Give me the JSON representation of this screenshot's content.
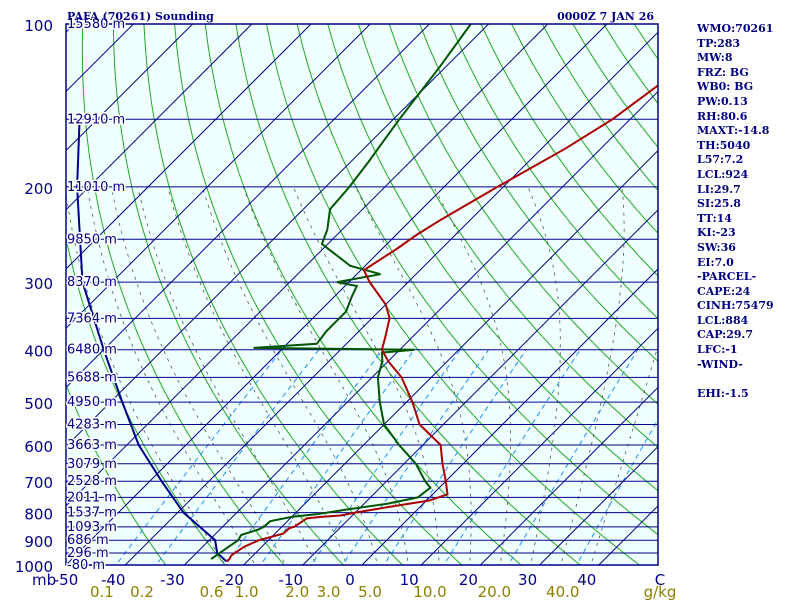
{
  "header": {
    "title": "PAFA (70261) Sounding",
    "valid_time": "0000Z  7 JAN 26"
  },
  "stats": [
    "WMO:70261",
    "TP:283",
    "MW:8",
    "FRZ: BG",
    "WB0: BG",
    "PW:0.13",
    "RH:80.6",
    "MAXT:-14.8",
    "TH:5040",
    "L57:7.2",
    "LCL:924",
    "LI:29.7",
    "SI:25.8",
    "TT:14",
    "KI:-23",
    "SW:36",
    "EI:7.0",
    "-PARCEL-",
    "CAPE:24",
    "CINH:75479",
    "LCL:884",
    "CAP:29.7",
    "LFC:-1",
    "-WIND-",
    "",
    "EHI:-1.5"
  ],
  "colors": {
    "frame": "#00008b",
    "plot_bg": "#f0ffff",
    "isobar": "#00008b",
    "isotherm": "#00008b",
    "dry_adiabat": "#22aa22",
    "moist_adiabat": "#555555",
    "mixing_ratio": "#1e90ff",
    "temperature": "#aa0000",
    "dewpoint": "#005500",
    "parcel": "#00008b",
    "stats_text": "#000080",
    "mixing_label": "#8b8000"
  },
  "chart_data": {
    "type": "skew-t",
    "title": "PAFA (70261) Sounding",
    "time_label": "0000Z  7 JAN 26",
    "pressure_unit": "mb",
    "pressure_levels": [
      100,
      200,
      300,
      400,
      500,
      600,
      700,
      800,
      900,
      1000
    ],
    "pressure_labels": [
      "100",
      "200",
      "300",
      "400",
      "500",
      "600",
      "700",
      "800",
      "900",
      "1000"
    ],
    "pressure_range": [
      100,
      1000
    ],
    "temperature_unit": "C",
    "temperature_ticks": [
      -50,
      -40,
      -30,
      -20,
      -10,
      0,
      10,
      20,
      30,
      40
    ],
    "temperature_tick_labels": [
      "-50",
      "-40",
      "-30",
      "-20",
      "-10",
      "0",
      "10",
      "20",
      "30",
      "40"
    ],
    "temperature_range": [
      -50,
      50
    ],
    "mixing_ratio_unit": "g/kg",
    "mixing_ratio_ticks": [
      0.1,
      0.2,
      0.6,
      1.0,
      2.0,
      3.0,
      5.0,
      10.0,
      20.0,
      40.0
    ],
    "mixing_ratio_labels": [
      "0.1",
      "0.2",
      "0.6",
      "1.0",
      "2.0",
      "3.0",
      "5.0",
      "10.0",
      "20.0",
      "40.0"
    ],
    "heights": [
      {
        "p": 100,
        "label": "15580 m"
      },
      {
        "p": 150,
        "label": "12910 m"
      },
      {
        "p": 200,
        "label": "11010 m"
      },
      {
        "p": 250,
        "label": "9850 m"
      },
      {
        "p": 300,
        "label": "8370 m"
      },
      {
        "p": 350,
        "label": "7364 m"
      },
      {
        "p": 400,
        "label": "6480 m"
      },
      {
        "p": 450,
        "label": "5688 m"
      },
      {
        "p": 500,
        "label": "4950 m"
      },
      {
        "p": 550,
        "label": "4283 m"
      },
      {
        "p": 600,
        "label": "3663 m"
      },
      {
        "p": 650,
        "label": "3079 m"
      },
      {
        "p": 700,
        "label": "2528 m"
      },
      {
        "p": 750,
        "label": "2011 m"
      },
      {
        "p": 800,
        "label": "1537 m"
      },
      {
        "p": 850,
        "label": "1093 m"
      },
      {
        "p": 900,
        "label": "686 m"
      },
      {
        "p": 950,
        "label": "296 m"
      },
      {
        "p": 1000,
        "label": "-80 m"
      }
    ],
    "temperature_profile": [
      {
        "p": 985,
        "t": -23.5
      },
      {
        "p": 975,
        "t": -23.4
      },
      {
        "p": 960,
        "t": -23.7
      },
      {
        "p": 925,
        "t": -23.0
      },
      {
        "p": 900,
        "t": -21.6
      },
      {
        "p": 875,
        "t": -18.6
      },
      {
        "p": 855,
        "t": -18.5
      },
      {
        "p": 850,
        "t": -17.9
      },
      {
        "p": 820,
        "t": -17.2
      },
      {
        "p": 815,
        "t": -15.0
      },
      {
        "p": 810,
        "t": -12.0
      },
      {
        "p": 800,
        "t": -10.0
      },
      {
        "p": 780,
        "t": -5.0
      },
      {
        "p": 760,
        "t": 0.5
      },
      {
        "p": 740,
        "t": 2.5
      },
      {
        "p": 700,
        "t": 0.0
      },
      {
        "p": 650,
        "t": -3.5
      },
      {
        "p": 600,
        "t": -7.0
      },
      {
        "p": 550,
        "t": -14.0
      },
      {
        "p": 500,
        "t": -19.0
      },
      {
        "p": 450,
        "t": -25.0
      },
      {
        "p": 420,
        "t": -30.0
      },
      {
        "p": 400,
        "t": -33.0
      },
      {
        "p": 380,
        "t": -34.5
      },
      {
        "p": 350,
        "t": -37.0
      },
      {
        "p": 330,
        "t": -40.0
      },
      {
        "p": 300,
        "t": -46.5
      },
      {
        "p": 285,
        "t": -49.5
      },
      {
        "p": 260,
        "t": -47.5
      },
      {
        "p": 245,
        "t": -46.5
      },
      {
        "p": 230,
        "t": -45.0
      },
      {
        "p": 200,
        "t": -41.0
      },
      {
        "p": 170,
        "t": -36.0
      },
      {
        "p": 150,
        "t": -33.0
      },
      {
        "p": 130,
        "t": -31.0
      },
      {
        "p": 110,
        "t": -28.0
      },
      {
        "p": 100,
        "t": -25.5
      }
    ],
    "dewpoint_profile": [
      {
        "p": 975,
        "t": -26.5
      },
      {
        "p": 930,
        "t": -25.7
      },
      {
        "p": 900,
        "t": -25.1
      },
      {
        "p": 880,
        "t": -25.5
      },
      {
        "p": 860,
        "t": -23.5
      },
      {
        "p": 850,
        "t": -23.0
      },
      {
        "p": 830,
        "t": -22.9
      },
      {
        "p": 815,
        "t": -20.0
      },
      {
        "p": 805,
        "t": -16.0
      },
      {
        "p": 790,
        "t": -12.0
      },
      {
        "p": 770,
        "t": -6.0
      },
      {
        "p": 750,
        "t": -2.0
      },
      {
        "p": 720,
        "t": -1.5
      },
      {
        "p": 700,
        "t": -3.5
      },
      {
        "p": 650,
        "t": -8.0
      },
      {
        "p": 600,
        "t": -14.0
      },
      {
        "p": 550,
        "t": -20.0
      },
      {
        "p": 500,
        "t": -24.5
      },
      {
        "p": 450,
        "t": -29.0
      },
      {
        "p": 420,
        "t": -31.0
      },
      {
        "p": 405,
        "t": -32.5
      },
      {
        "p": 400,
        "t": -27.5
      },
      {
        "p": 397,
        "t": -55.0
      },
      {
        "p": 390,
        "t": -45.0
      },
      {
        "p": 370,
        "t": -45.5
      },
      {
        "p": 340,
        "t": -45.5
      },
      {
        "p": 320,
        "t": -47.0
      },
      {
        "p": 305,
        "t": -48.0
      },
      {
        "p": 300,
        "t": -52.0
      },
      {
        "p": 290,
        "t": -46.0
      },
      {
        "p": 280,
        "t": -52.5
      },
      {
        "p": 255,
        "t": -61.0
      },
      {
        "p": 240,
        "t": -62.5
      },
      {
        "p": 220,
        "t": -65.5
      },
      {
        "p": 200,
        "t": -66.0
      },
      {
        "p": 180,
        "t": -67.0
      },
      {
        "p": 150,
        "t": -69.0
      },
      {
        "p": 120,
        "t": -71.0
      },
      {
        "p": 100,
        "t": -73.0
      }
    ],
    "parcel_profile": [
      {
        "p": 985,
        "t": -23.5
      },
      {
        "p": 950,
        "t": -26.5
      },
      {
        "p": 900,
        "t": -29.0
      },
      {
        "p": 800,
        "t": -39.0
      },
      {
        "p": 700,
        "t": -48.0
      },
      {
        "p": 600,
        "t": -58.0
      },
      {
        "p": 500,
        "t": -68.0
      },
      {
        "p": 400,
        "t": -80.0
      },
      {
        "p": 300,
        "t": -95.0
      },
      {
        "p": 200,
        "t": -112.0
      },
      {
        "p": 150,
        "t": -123.0
      }
    ]
  }
}
